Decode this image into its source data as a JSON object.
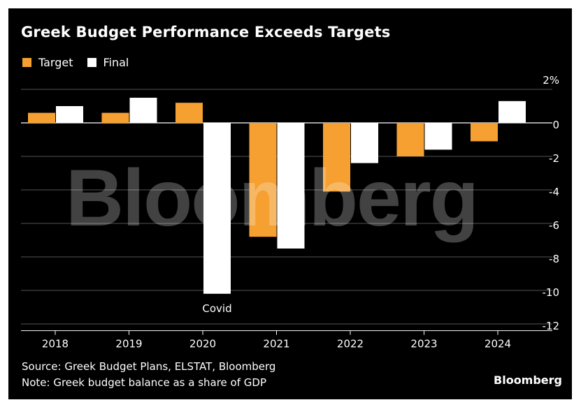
{
  "header": {
    "title": "Greek Budget Performance Exceeds Targets"
  },
  "legend": {
    "items": [
      {
        "label": "Target",
        "color": "#f5a030"
      },
      {
        "label": "Final",
        "color": "#ffffff"
      }
    ]
  },
  "chart_data": {
    "type": "bar",
    "title": "Greek Budget Performance Exceeds Targets",
    "xlabel": "",
    "ylabel": "",
    "categories": [
      "2018",
      "2019",
      "2020",
      "2021",
      "2022",
      "2023",
      "2024"
    ],
    "series": [
      {
        "name": "Target",
        "color": "#f5a030",
        "values": [
          0.6,
          0.6,
          1.2,
          -6.8,
          -4.1,
          -2.0,
          -1.1
        ]
      },
      {
        "name": "Final",
        "color": "#ffffff",
        "values": [
          1.0,
          1.5,
          null,
          -7.5,
          -2.4,
          -1.6,
          1.3
        ]
      }
    ],
    "extra_points": [
      {
        "category": "2020",
        "series": "Final",
        "value": -10.2
      }
    ],
    "ylim": [
      -12.5,
      2
    ],
    "yticks": [
      2,
      0,
      -2,
      -4,
      -6,
      -8,
      -10,
      -12
    ],
    "ytick_labels": [
      "2%",
      "0",
      "-2",
      "-4",
      "-6",
      "-8",
      "-10",
      "-12"
    ],
    "grid": true,
    "legend_position": "top-left",
    "annotations": [
      {
        "text": "Covid",
        "category": "2020"
      }
    ]
  },
  "footer": {
    "source": "Source: Greek Budget Plans, ELSTAT, Bloomberg",
    "note": "Note: Greek budget balance as a share of GDP",
    "brand": "Bloomberg"
  },
  "watermark": {
    "text": "Bloomberg"
  }
}
